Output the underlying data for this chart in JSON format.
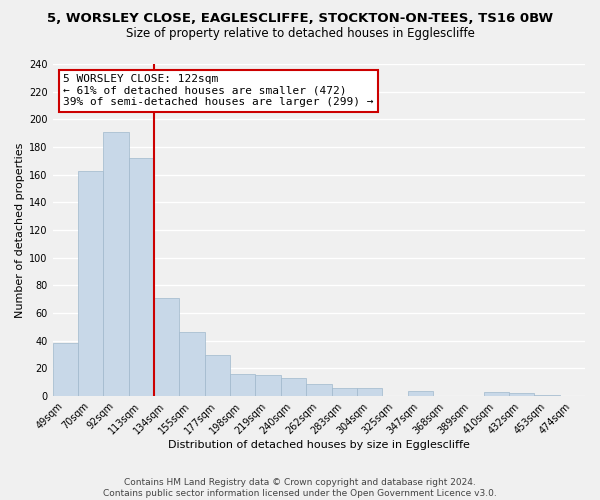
{
  "title": "5, WORSLEY CLOSE, EAGLESCLIFFE, STOCKTON-ON-TEES, TS16 0BW",
  "subtitle": "Size of property relative to detached houses in Egglescliffe",
  "xlabel": "Distribution of detached houses by size in Egglescliffe",
  "ylabel": "Number of detached properties",
  "bar_color": "#c8d8e8",
  "bar_edge_color": "#a0b8cc",
  "categories": [
    "49sqm",
    "70sqm",
    "92sqm",
    "113sqm",
    "134sqm",
    "155sqm",
    "177sqm",
    "198sqm",
    "219sqm",
    "240sqm",
    "262sqm",
    "283sqm",
    "304sqm",
    "325sqm",
    "347sqm",
    "368sqm",
    "389sqm",
    "410sqm",
    "432sqm",
    "453sqm",
    "474sqm"
  ],
  "values": [
    38,
    163,
    191,
    172,
    71,
    46,
    30,
    16,
    15,
    13,
    9,
    6,
    6,
    0,
    4,
    0,
    0,
    3,
    2,
    1,
    0
  ],
  "vline_x": 3.5,
  "vline_color": "#cc0000",
  "annotation_line1": "5 WORSLEY CLOSE: 122sqm",
  "annotation_line2": "← 61% of detached houses are smaller (472)",
  "annotation_line3": "39% of semi-detached houses are larger (299) →",
  "ylim": [
    0,
    240
  ],
  "yticks": [
    0,
    20,
    40,
    60,
    80,
    100,
    120,
    140,
    160,
    180,
    200,
    220,
    240
  ],
  "footer_text": "Contains HM Land Registry data © Crown copyright and database right 2024.\nContains public sector information licensed under the Open Government Licence v3.0.",
  "background_color": "#f0f0f0",
  "plot_bg_color": "#f0f0f0",
  "grid_color": "#ffffff",
  "title_fontsize": 9.5,
  "subtitle_fontsize": 8.5,
  "axis_label_fontsize": 8.0,
  "tick_fontsize": 7.0,
  "annotation_fontsize": 8.0,
  "footer_fontsize": 6.5
}
